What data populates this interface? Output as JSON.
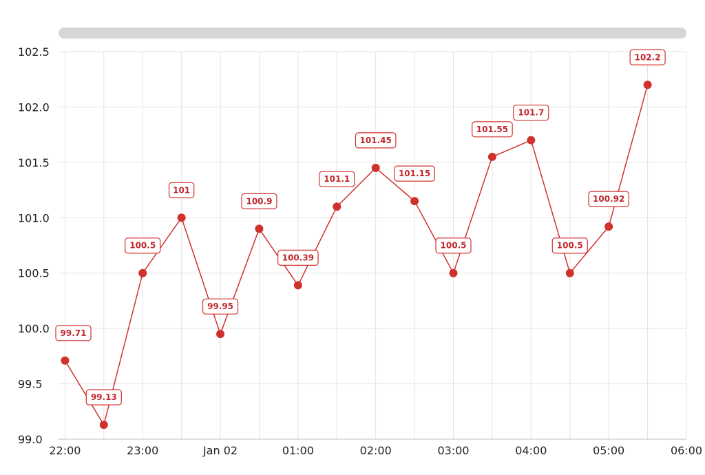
{
  "scrollbar": {
    "visible": true
  },
  "chart_data": {
    "type": "line",
    "x_ticks": [
      "22:00",
      "23:00",
      "Jan 02",
      "01:00",
      "02:00",
      "03:00",
      "04:00",
      "05:00",
      "06:00"
    ],
    "y_ticks": [
      "99.0",
      "99.5",
      "100.0",
      "100.5",
      "101.0",
      "101.5",
      "102.0",
      "102.5"
    ],
    "ylim": [
      99.0,
      102.5
    ],
    "xlim": [
      "2023-01-01T21:55",
      "2023-01-02T06:00"
    ],
    "grid": true,
    "color": "#d0312d",
    "series": [
      {
        "x": [
          "2023-01-01T22:00",
          "2023-01-01T22:30",
          "2023-01-01T23:00",
          "2023-01-01T23:30",
          "2023-01-02T00:00",
          "2023-01-02T00:30",
          "2023-01-02T01:00",
          "2023-01-02T01:30",
          "2023-01-02T02:00",
          "2023-01-02T02:30",
          "2023-01-02T03:00",
          "2023-01-02T03:30",
          "2023-01-02T04:00",
          "2023-01-02T04:30",
          "2023-01-02T05:00",
          "2023-01-02T05:30"
        ],
        "values": [
          99.71,
          99.13,
          100.5,
          101,
          99.95,
          100.9,
          100.39,
          101.1,
          101.45,
          101.15,
          100.5,
          101.55,
          101.7,
          100.5,
          100.92,
          102.2
        ],
        "labels": [
          "99.71",
          "99.13",
          "100.5",
          "101",
          "99.95",
          "100.9",
          "100.39",
          "101.1",
          "101.45",
          "101.15",
          "100.5",
          "101.55",
          "101.7",
          "100.5",
          "100.92",
          "102.2"
        ]
      }
    ]
  }
}
